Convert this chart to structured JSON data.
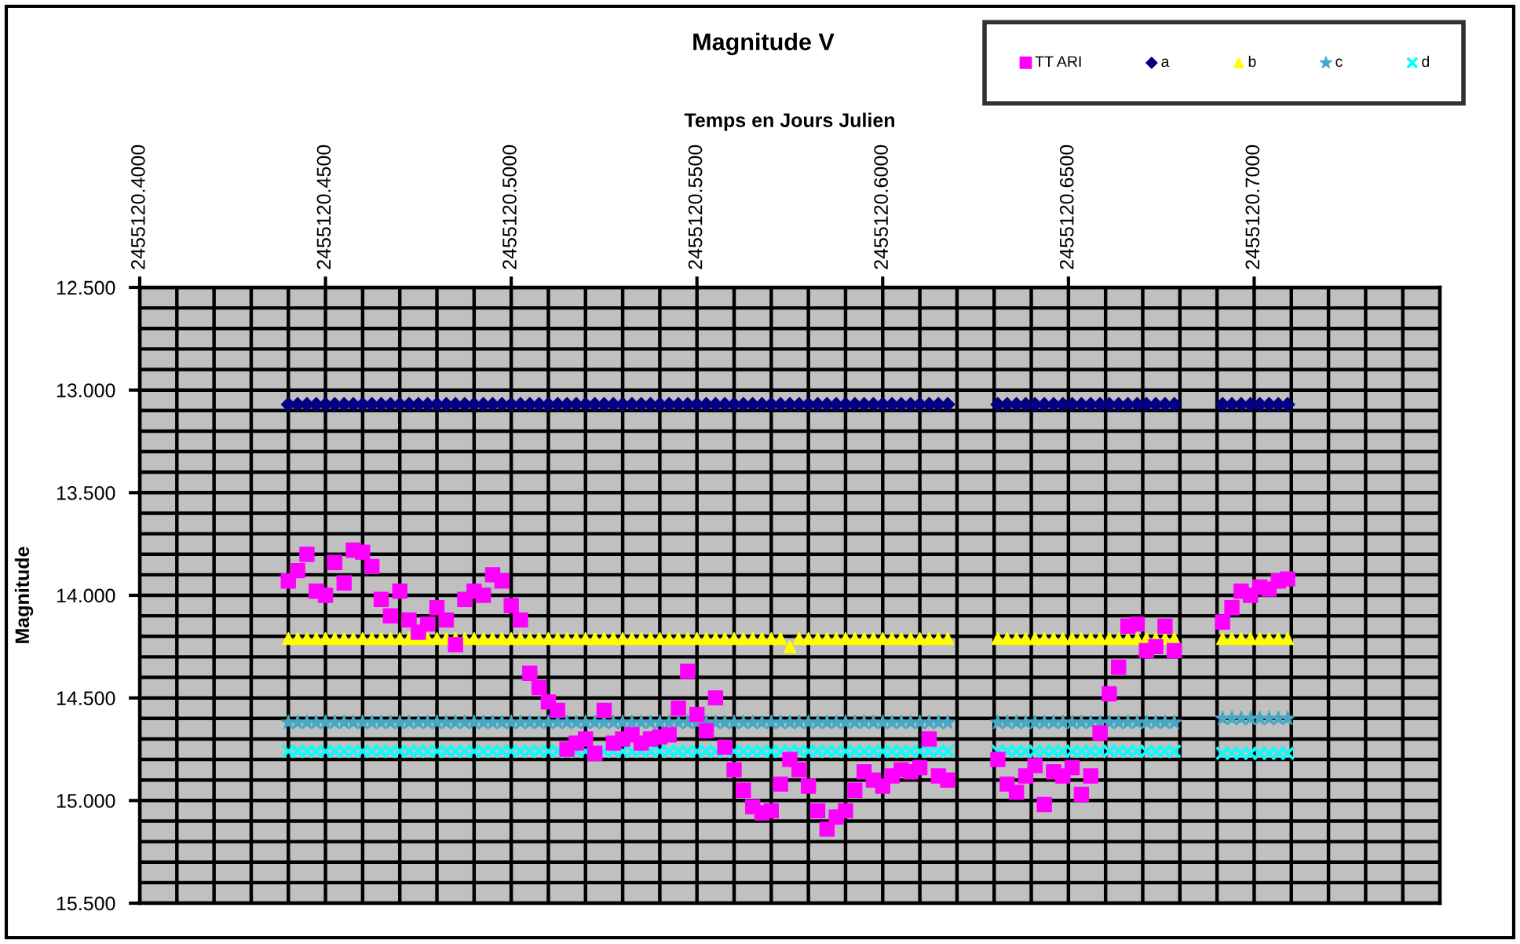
{
  "chart_data": {
    "type": "scatter",
    "title": "Magnitude V",
    "xlabel": "Temps en Jours Julien",
    "ylabel": "Magnitude",
    "x": [
      2455120.44,
      2455120.4425,
      2455120.445,
      2455120.4475,
      2455120.45,
      2455120.4525,
      2455120.455,
      2455120.4575,
      2455120.46,
      2455120.4625,
      2455120.465,
      2455120.4675,
      2455120.47,
      2455120.4725,
      2455120.475,
      2455120.4775,
      2455120.48,
      2455120.4825,
      2455120.485,
      2455120.4875,
      2455120.49,
      2455120.4925,
      2455120.495,
      2455120.4975,
      2455120.5,
      2455120.5025,
      2455120.505,
      2455120.5075,
      2455120.51,
      2455120.5125,
      2455120.515,
      2455120.5175,
      2455120.52,
      2455120.5225,
      2455120.525,
      2455120.5275,
      2455120.53,
      2455120.5325,
      2455120.535,
      2455120.5375,
      2455120.54,
      2455120.5425,
      2455120.545,
      2455120.5475,
      2455120.55,
      2455120.5525,
      2455120.555,
      2455120.5575,
      2455120.56,
      2455120.5625,
      2455120.565,
      2455120.5675,
      2455120.57,
      2455120.5725,
      2455120.575,
      2455120.5775,
      2455120.58,
      2455120.5825,
      2455120.585,
      2455120.5875,
      2455120.59,
      2455120.5925,
      2455120.595,
      2455120.5975,
      2455120.6,
      2455120.6025,
      2455120.605,
      2455120.6075,
      2455120.61,
      2455120.6125,
      2455120.615,
      2455120.6175,
      2455120.631,
      2455120.6335,
      2455120.636,
      2455120.6385,
      2455120.641,
      2455120.6435,
      2455120.646,
      2455120.6485,
      2455120.651,
      2455120.6535,
      2455120.656,
      2455120.6585,
      2455120.661,
      2455120.6635,
      2455120.666,
      2455120.6685,
      2455120.671,
      2455120.6735,
      2455120.676,
      2455120.6785,
      2455120.6915,
      2455120.694,
      2455120.6965,
      2455120.699,
      2455120.7015,
      2455120.704,
      2455120.7065,
      2455120.709
    ],
    "series": [
      {
        "name": "TT ARI",
        "color": "#ff00ff",
        "marker": "square",
        "values": [
          13.93,
          13.88,
          13.8,
          13.98,
          14.0,
          13.84,
          13.94,
          13.78,
          13.79,
          13.86,
          14.02,
          14.1,
          13.98,
          14.12,
          14.18,
          14.14,
          14.06,
          14.12,
          14.24,
          14.02,
          13.98,
          14.0,
          13.9,
          13.93,
          14.05,
          14.12,
          14.38,
          14.45,
          14.52,
          14.56,
          14.75,
          14.72,
          14.7,
          14.77,
          14.56,
          14.72,
          14.7,
          14.68,
          14.72,
          14.7,
          14.69,
          14.68,
          14.55,
          14.37,
          14.58,
          14.66,
          14.5,
          14.74,
          14.85,
          14.95,
          15.03,
          15.06,
          15.05,
          14.92,
          14.8,
          14.85,
          14.93,
          15.05,
          15.14,
          15.08,
          15.05,
          14.95,
          14.86,
          14.9,
          14.93,
          14.88,
          14.85,
          14.86,
          14.84,
          14.7,
          14.88,
          14.9,
          14.8,
          14.92,
          14.96,
          14.88,
          14.83,
          15.02,
          14.86,
          14.88,
          14.84,
          14.97,
          14.88,
          14.67,
          14.48,
          14.35,
          14.15,
          14.14,
          14.27,
          14.25,
          14.15,
          14.27,
          14.13,
          14.06,
          13.98,
          14.0,
          13.96,
          13.97,
          13.93,
          13.92
        ]
      },
      {
        "name": "a",
        "color": "#000080",
        "marker": "diamond",
        "values": [
          13.07,
          13.07,
          13.07,
          13.07,
          13.07,
          13.07,
          13.07,
          13.07,
          13.07,
          13.07,
          13.07,
          13.07,
          13.07,
          13.07,
          13.07,
          13.07,
          13.07,
          13.07,
          13.07,
          13.07,
          13.07,
          13.07,
          13.07,
          13.07,
          13.07,
          13.07,
          13.07,
          13.07,
          13.07,
          13.07,
          13.07,
          13.07,
          13.07,
          13.07,
          13.07,
          13.07,
          13.07,
          13.07,
          13.07,
          13.07,
          13.07,
          13.07,
          13.07,
          13.07,
          13.07,
          13.07,
          13.07,
          13.07,
          13.07,
          13.07,
          13.07,
          13.07,
          13.07,
          13.07,
          13.07,
          13.07,
          13.07,
          13.07,
          13.07,
          13.07,
          13.07,
          13.07,
          13.07,
          13.07,
          13.07,
          13.07,
          13.07,
          13.07,
          13.07,
          13.07,
          13.07,
          13.07,
          13.07,
          13.07,
          13.07,
          13.07,
          13.07,
          13.07,
          13.07,
          13.07,
          13.07,
          13.07,
          13.07,
          13.07,
          13.07,
          13.07,
          13.07,
          13.07,
          13.07,
          13.07,
          13.07,
          13.07,
          13.07,
          13.07,
          13.07,
          13.07,
          13.07,
          13.07,
          13.07,
          13.07
        ]
      },
      {
        "name": "b",
        "color": "#ffff00",
        "marker": "triangle",
        "values": [
          14.21,
          14.21,
          14.21,
          14.21,
          14.21,
          14.21,
          14.21,
          14.21,
          14.21,
          14.21,
          14.21,
          14.21,
          14.21,
          14.21,
          14.21,
          14.21,
          14.21,
          14.21,
          14.21,
          14.21,
          14.21,
          14.21,
          14.21,
          14.21,
          14.21,
          14.21,
          14.21,
          14.21,
          14.21,
          14.21,
          14.21,
          14.21,
          14.21,
          14.21,
          14.21,
          14.21,
          14.21,
          14.21,
          14.21,
          14.21,
          14.21,
          14.21,
          14.21,
          14.21,
          14.21,
          14.21,
          14.21,
          14.21,
          14.21,
          14.21,
          14.21,
          14.21,
          14.21,
          14.21,
          14.25,
          14.21,
          14.21,
          14.21,
          14.21,
          14.21,
          14.21,
          14.21,
          14.21,
          14.21,
          14.21,
          14.21,
          14.21,
          14.21,
          14.21,
          14.21,
          14.21,
          14.21,
          14.21,
          14.21,
          14.21,
          14.21,
          14.21,
          14.21,
          14.21,
          14.21,
          14.21,
          14.21,
          14.21,
          14.21,
          14.21,
          14.21,
          14.21,
          14.21,
          14.21,
          14.21,
          14.21,
          14.21,
          14.21,
          14.21,
          14.21,
          14.21,
          14.21,
          14.21,
          14.21,
          14.21
        ]
      },
      {
        "name": "c",
        "color": "#46a8c4",
        "marker": "star",
        "values": [
          14.62,
          14.62,
          14.62,
          14.62,
          14.62,
          14.62,
          14.62,
          14.62,
          14.62,
          14.62,
          14.62,
          14.62,
          14.62,
          14.62,
          14.62,
          14.62,
          14.62,
          14.62,
          14.62,
          14.62,
          14.62,
          14.62,
          14.62,
          14.62,
          14.62,
          14.62,
          14.62,
          14.62,
          14.62,
          14.62,
          14.62,
          14.62,
          14.62,
          14.62,
          14.62,
          14.62,
          14.62,
          14.62,
          14.62,
          14.62,
          14.62,
          14.62,
          14.62,
          14.62,
          14.62,
          14.62,
          14.62,
          14.62,
          14.62,
          14.62,
          14.62,
          14.62,
          14.62,
          14.62,
          14.62,
          14.62,
          14.62,
          14.62,
          14.62,
          14.62,
          14.62,
          14.62,
          14.62,
          14.62,
          14.62,
          14.62,
          14.62,
          14.62,
          14.62,
          14.62,
          14.62,
          14.62,
          14.62,
          14.62,
          14.62,
          14.62,
          14.62,
          14.62,
          14.62,
          14.62,
          14.62,
          14.62,
          14.62,
          14.62,
          14.62,
          14.62,
          14.62,
          14.62,
          14.62,
          14.62,
          14.62,
          14.62,
          14.6,
          14.6,
          14.6,
          14.6,
          14.6,
          14.6,
          14.6,
          14.6
        ]
      },
      {
        "name": "d",
        "color": "#00ffff",
        "marker": "cross",
        "values": [
          14.76,
          14.76,
          14.76,
          14.76,
          14.76,
          14.76,
          14.76,
          14.76,
          14.76,
          14.76,
          14.76,
          14.76,
          14.76,
          14.76,
          14.76,
          14.76,
          14.76,
          14.76,
          14.76,
          14.76,
          14.76,
          14.76,
          14.76,
          14.76,
          14.76,
          14.76,
          14.76,
          14.76,
          14.76,
          14.76,
          14.76,
          14.76,
          14.76,
          14.76,
          14.76,
          14.76,
          14.76,
          14.76,
          14.76,
          14.76,
          14.76,
          14.76,
          14.76,
          14.76,
          14.76,
          14.76,
          14.76,
          14.76,
          14.76,
          14.76,
          14.76,
          14.76,
          14.76,
          14.76,
          14.76,
          14.76,
          14.76,
          14.76,
          14.76,
          14.76,
          14.76,
          14.76,
          14.76,
          14.76,
          14.76,
          14.76,
          14.76,
          14.76,
          14.76,
          14.76,
          14.76,
          14.76,
          14.76,
          14.76,
          14.76,
          14.76,
          14.76,
          14.76,
          14.76,
          14.76,
          14.76,
          14.76,
          14.76,
          14.76,
          14.76,
          14.76,
          14.76,
          14.76,
          14.76,
          14.76,
          14.76,
          14.76,
          14.77,
          14.77,
          14.77,
          14.77,
          14.77,
          14.77,
          14.77,
          14.77
        ]
      }
    ],
    "xlim": [
      2455120.4,
      2455120.75
    ],
    "xticks": [
      {
        "value": 2455120.4,
        "label": "2455120.4000"
      },
      {
        "value": 2455120.41,
        "label": null
      },
      {
        "value": 2455120.42,
        "label": null
      },
      {
        "value": 2455120.43,
        "label": null
      },
      {
        "value": 2455120.44,
        "label": null
      },
      {
        "value": 2455120.45,
        "label": "2455120.4500"
      },
      {
        "value": 2455120.46,
        "label": null
      },
      {
        "value": 2455120.47,
        "label": null
      },
      {
        "value": 2455120.48,
        "label": null
      },
      {
        "value": 2455120.49,
        "label": null
      },
      {
        "value": 2455120.5,
        "label": "2455120.5000"
      },
      {
        "value": 2455120.51,
        "label": null
      },
      {
        "value": 2455120.52,
        "label": null
      },
      {
        "value": 2455120.53,
        "label": null
      },
      {
        "value": 2455120.54,
        "label": null
      },
      {
        "value": 2455120.55,
        "label": "2455120.5500"
      },
      {
        "value": 2455120.56,
        "label": null
      },
      {
        "value": 2455120.57,
        "label": null
      },
      {
        "value": 2455120.58,
        "label": null
      },
      {
        "value": 2455120.59,
        "label": null
      },
      {
        "value": 2455120.6,
        "label": "2455120.6000"
      },
      {
        "value": 2455120.61,
        "label": null
      },
      {
        "value": 2455120.62,
        "label": null
      },
      {
        "value": 2455120.63,
        "label": null
      },
      {
        "value": 2455120.64,
        "label": null
      },
      {
        "value": 2455120.65,
        "label": "2455120.6500"
      },
      {
        "value": 2455120.66,
        "label": null
      },
      {
        "value": 2455120.67,
        "label": null
      },
      {
        "value": 2455120.68,
        "label": null
      },
      {
        "value": 2455120.69,
        "label": null
      },
      {
        "value": 2455120.7,
        "label": "2455120.7000"
      },
      {
        "value": 2455120.71,
        "label": null
      },
      {
        "value": 2455120.72,
        "label": null
      },
      {
        "value": 2455120.73,
        "label": null
      },
      {
        "value": 2455120.74,
        "label": null
      },
      {
        "value": 2455120.75,
        "label": null
      }
    ],
    "ylim": [
      15.5,
      12.5
    ],
    "yticks": [
      {
        "value": 12.5,
        "label": "12.500"
      },
      {
        "value": 12.6,
        "label": null
      },
      {
        "value": 12.7,
        "label": null
      },
      {
        "value": 12.8,
        "label": null
      },
      {
        "value": 12.9,
        "label": null
      },
      {
        "value": 13.0,
        "label": "13.000"
      },
      {
        "value": 13.1,
        "label": null
      },
      {
        "value": 13.2,
        "label": null
      },
      {
        "value": 13.3,
        "label": null
      },
      {
        "value": 13.4,
        "label": null
      },
      {
        "value": 13.5,
        "label": "13.500"
      },
      {
        "value": 13.6,
        "label": null
      },
      {
        "value": 13.7,
        "label": null
      },
      {
        "value": 13.8,
        "label": null
      },
      {
        "value": 13.9,
        "label": null
      },
      {
        "value": 14.0,
        "label": "14.000"
      },
      {
        "value": 14.1,
        "label": null
      },
      {
        "value": 14.2,
        "label": null
      },
      {
        "value": 14.3,
        "label": null
      },
      {
        "value": 14.4,
        "label": null
      },
      {
        "value": 14.5,
        "label": "14.500"
      },
      {
        "value": 14.6,
        "label": null
      },
      {
        "value": 14.7,
        "label": null
      },
      {
        "value": 14.8,
        "label": null
      },
      {
        "value": 14.9,
        "label": null
      },
      {
        "value": 15.0,
        "label": "15.000"
      },
      {
        "value": 15.1,
        "label": null
      },
      {
        "value": 15.2,
        "label": null
      },
      {
        "value": 15.3,
        "label": null
      },
      {
        "value": 15.4,
        "label": null
      },
      {
        "value": 15.5,
        "label": "15.500"
      }
    ],
    "grid": true,
    "legend": "top right"
  }
}
